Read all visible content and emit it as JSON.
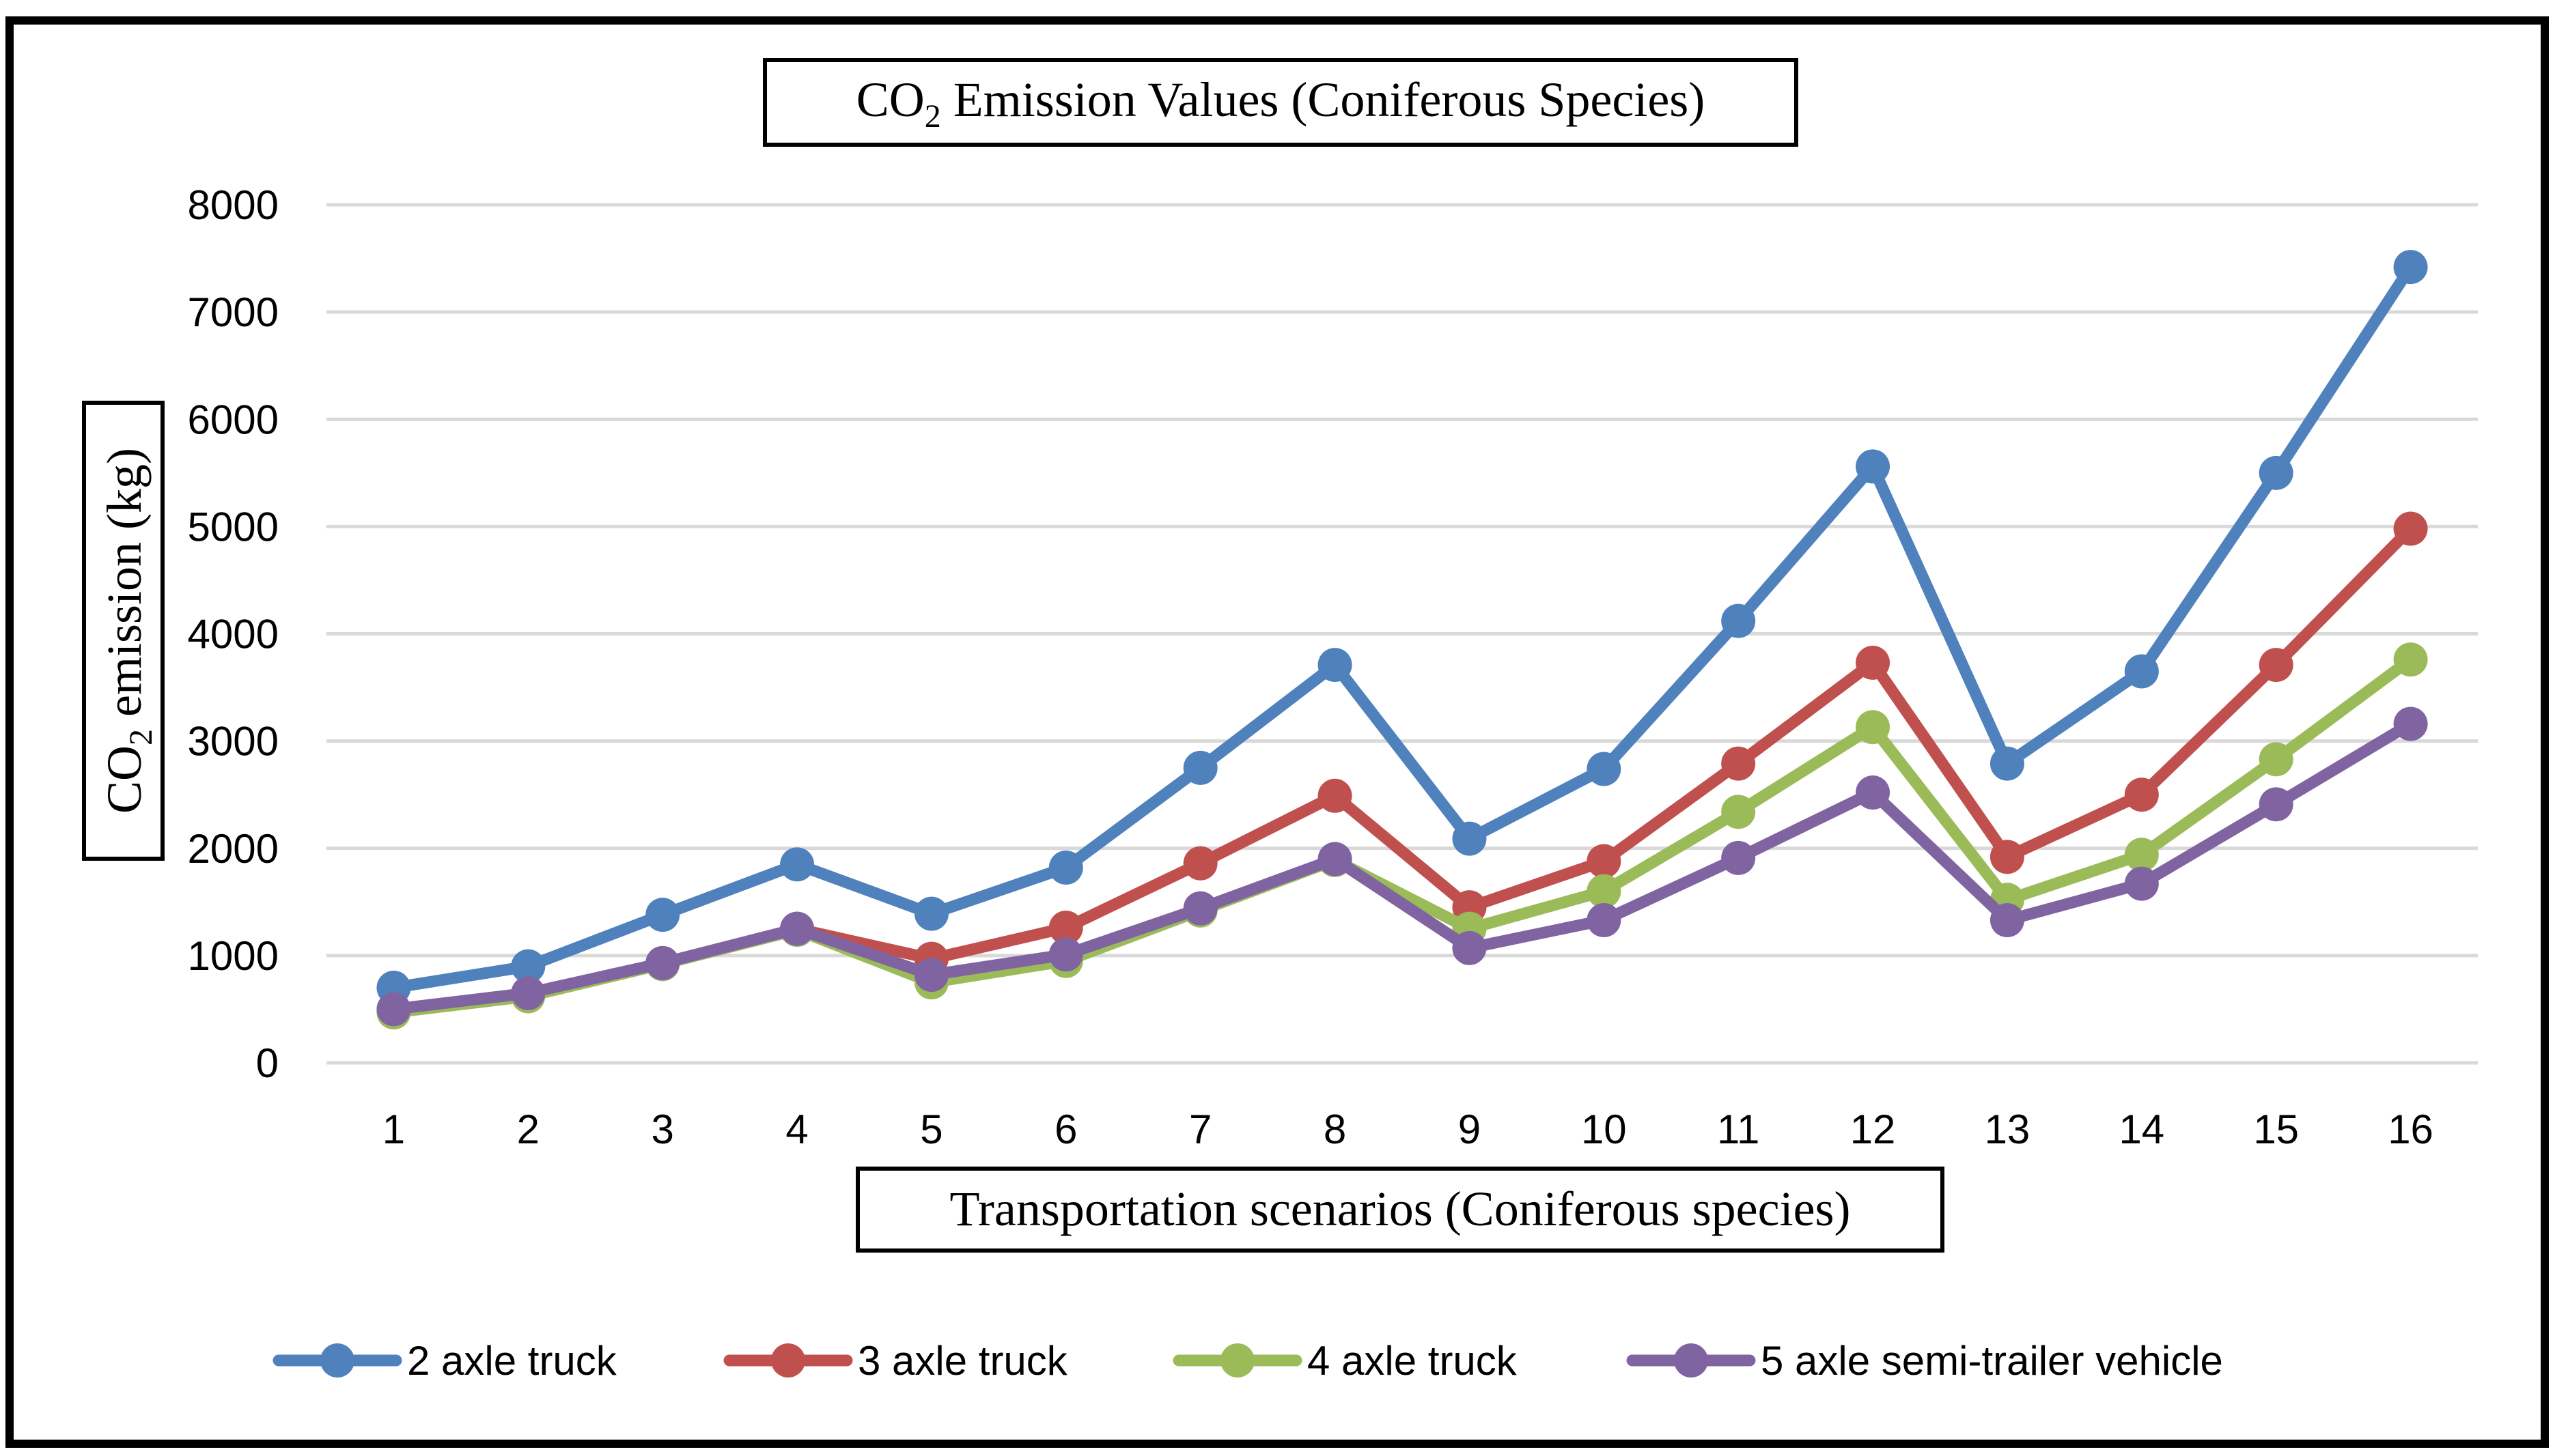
{
  "chart_data": {
    "type": "line",
    "title": "CO₂ Emission Values (Coniferous Species)",
    "title_parts": {
      "prefix": "CO",
      "subscript": "2",
      "suffix": " Emission Values (Coniferous Species)"
    },
    "xlabel": "Transportation scenarios (Coniferous species)",
    "ylabel": "CO₂ emission (kg)",
    "ylabel_parts": {
      "prefix": "CO",
      "subscript": "2",
      "suffix": " emission (kg)"
    },
    "categories": [
      "1",
      "2",
      "3",
      "4",
      "5",
      "6",
      "7",
      "8",
      "9",
      "10",
      "11",
      "12",
      "13",
      "14",
      "15",
      "16"
    ],
    "ylim": [
      0,
      8000
    ],
    "yticks": [
      0,
      1000,
      2000,
      3000,
      4000,
      5000,
      6000,
      7000,
      8000
    ],
    "grid": true,
    "legend_position": "bottom",
    "series": [
      {
        "name": "2 axle truck",
        "color": "#4F81BD",
        "values": [
          700,
          900,
          1380,
          1850,
          1390,
          1820,
          2750,
          3710,
          2090,
          2740,
          4120,
          5560,
          2790,
          3650,
          5500,
          7420
        ]
      },
      {
        "name": "3 axle truck",
        "color": "#C0504D",
        "values": [
          490,
          640,
          930,
          1250,
          970,
          1260,
          1860,
          2490,
          1450,
          1880,
          2790,
          3730,
          1920,
          2500,
          3710,
          4980
        ]
      },
      {
        "name": "4 axle truck",
        "color": "#9BBB59",
        "values": [
          470,
          620,
          920,
          1240,
          750,
          950,
          1420,
          1890,
          1250,
          1600,
          2340,
          3130,
          1520,
          1940,
          2830,
          3760
        ]
      },
      {
        "name": "5 axle semi-trailer vehicle",
        "color": "#8064A2",
        "values": [
          500,
          650,
          930,
          1250,
          820,
          1010,
          1440,
          1900,
          1070,
          1330,
          1910,
          2520,
          1330,
          1670,
          2410,
          3160
        ]
      }
    ]
  }
}
